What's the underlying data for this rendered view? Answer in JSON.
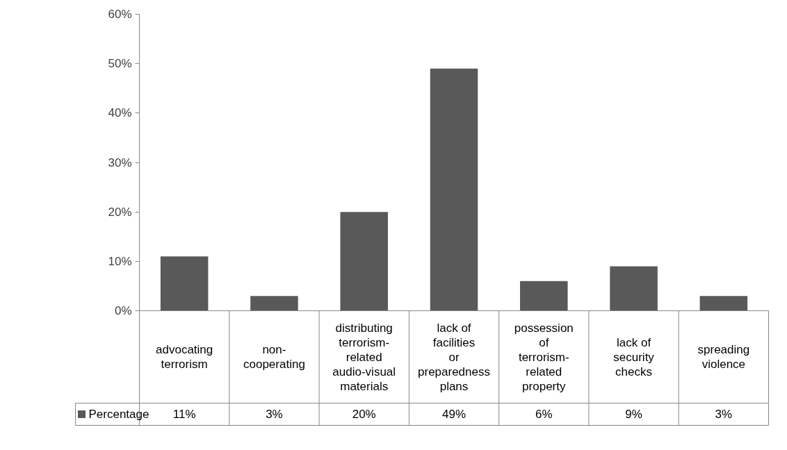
{
  "chart_data": {
    "type": "bar",
    "categories": [
      "advocating terrorism",
      "non-cooperating",
      "distributing terrorism-related audio-visual materials",
      "lack of facilities or preparedness plans",
      "possession of terrorism-related property",
      "lack of security checks",
      "spreading violence"
    ],
    "series": [
      {
        "name": "Percentage",
        "color": "#595959",
        "values": [
          11,
          3,
          20,
          49,
          6,
          9,
          3
        ],
        "value_labels": [
          "11%",
          "3%",
          "20%",
          "49%",
          "6%",
          "9%",
          "3%"
        ]
      }
    ],
    "ylim": [
      0,
      60
    ],
    "yticks": [
      {
        "value": 0,
        "label": "0%"
      },
      {
        "value": 10,
        "label": "10%"
      },
      {
        "value": 20,
        "label": "20%"
      },
      {
        "value": 30,
        "label": "30%"
      },
      {
        "value": 40,
        "label": "40%"
      },
      {
        "value": 50,
        "label": "50%"
      },
      {
        "value": 60,
        "label": "60%"
      }
    ],
    "legend": "bottom left",
    "grid": false
  }
}
